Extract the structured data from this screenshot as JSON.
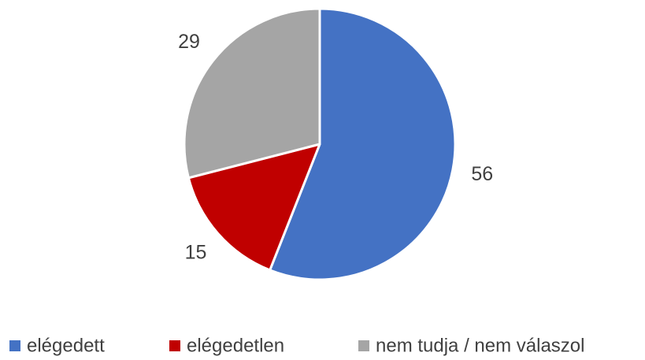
{
  "chart_data": {
    "type": "pie",
    "categories": [
      "elégedett",
      "elégedetlen",
      "nem tudja / nem válaszol"
    ],
    "values": [
      56,
      15,
      29
    ],
    "colors": [
      "#4472c4",
      "#c00000",
      "#a5a5a5"
    ],
    "legend": "bottom"
  }
}
